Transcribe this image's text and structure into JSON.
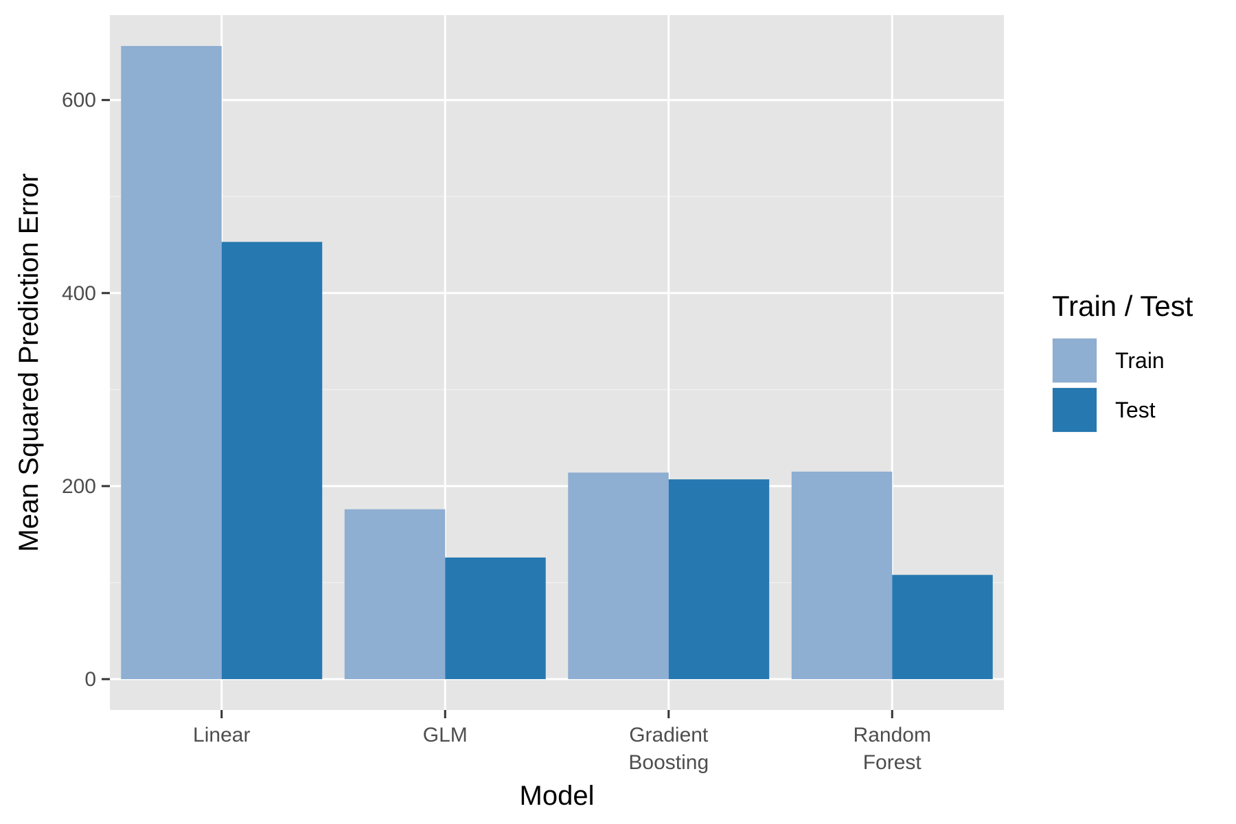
{
  "chart_data": {
    "type": "bar",
    "xlabel": "Model",
    "ylabel": "Mean Squared Prediction Error",
    "categories": [
      [
        "Linear"
      ],
      [
        "GLM"
      ],
      [
        "Gradient",
        "Boosting"
      ],
      [
        "Random",
        "Forest"
      ]
    ],
    "series": [
      {
        "name": "Train",
        "color": "#8eaed2",
        "values": [
          656,
          176,
          214,
          215
        ]
      },
      {
        "name": "Test",
        "color": "#2678b1",
        "values": [
          453,
          126,
          207,
          108
        ]
      }
    ],
    "ylim": [
      -32,
      688
    ],
    "yticks": [
      0,
      200,
      400,
      600
    ],
    "grid": true,
    "legend": {
      "title": "Train / Test",
      "position": "right"
    },
    "panel_background": "#e5e5e5",
    "grid_color": "#ffffff"
  }
}
